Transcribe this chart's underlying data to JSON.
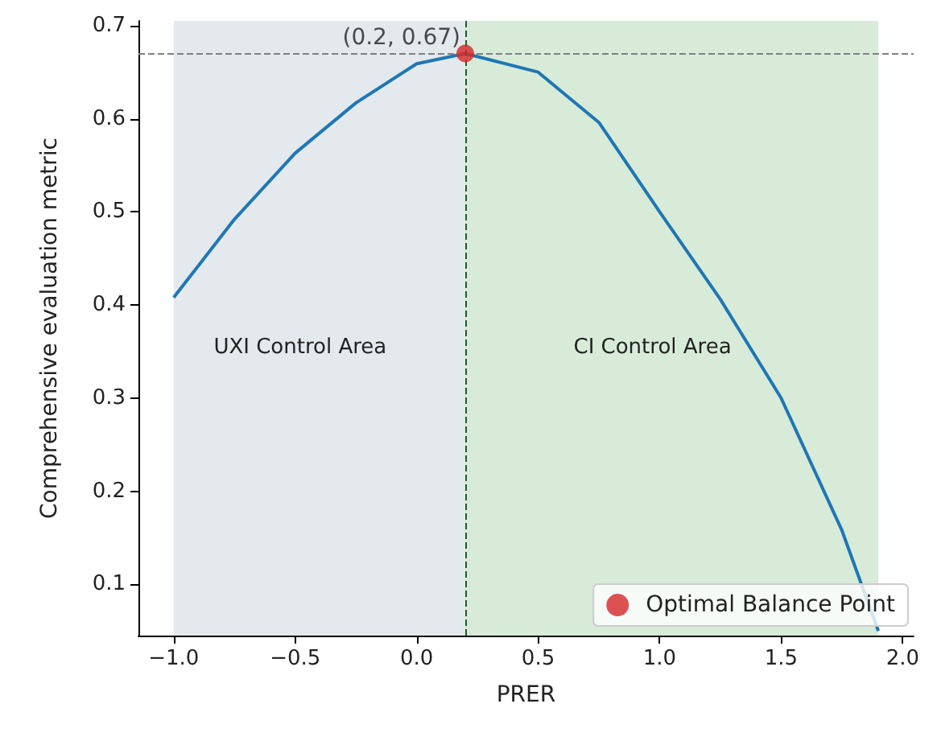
{
  "chart_data": {
    "type": "line",
    "xlabel": "PRER",
    "ylabel": "Comprehensive evaluation metric",
    "xlim": [
      -1.145,
      2.045
    ],
    "ylim": [
      0.045,
      0.705
    ],
    "xticks": [
      {
        "value": -1,
        "label": "−1.0"
      },
      {
        "value": -0.5,
        "label": "−0.5"
      },
      {
        "value": 0,
        "label": "0.0"
      },
      {
        "value": 0.5,
        "label": "0.5"
      },
      {
        "value": 1,
        "label": "1.0"
      },
      {
        "value": 1.5,
        "label": "1.5"
      },
      {
        "value": 2,
        "label": "2.0"
      }
    ],
    "yticks": [
      0.1,
      0.2,
      0.3,
      0.4,
      0.5,
      0.6,
      0.7
    ],
    "series": [
      {
        "type": "line",
        "color": "#1f77b4",
        "marker": "none",
        "x": [
          -1,
          -0.75,
          -0.5,
          -0.25,
          0,
          0.2,
          0.5,
          0.75,
          1,
          1.25,
          1.5,
          1.75,
          1.9
        ],
        "values": [
          0.408,
          0.492,
          0.563,
          0.617,
          0.659,
          0.67,
          0.65,
          0.596,
          0.5,
          0.406,
          0.3,
          0.158,
          0.05
        ]
      },
      {
        "type": "scatter",
        "name": "Optimal Balance Point",
        "color": "#d62728",
        "marker": "circle",
        "x": [
          0.2
        ],
        "values": [
          0.67
        ]
      }
    ],
    "bands": [
      {
        "axis": "x",
        "from": -1,
        "to": 0.2,
        "label": "UXI Control Area",
        "color": "#e3e9ec"
      },
      {
        "axis": "x",
        "from": 0.2,
        "to": 1.9,
        "label": "CI Control Area",
        "color": "#d8ebd8"
      }
    ],
    "ref_lines": [
      {
        "axis": "y",
        "value": 0.67,
        "color": "#808080",
        "line_style": "dashed"
      },
      {
        "axis": "x",
        "value": 0.2,
        "color": "#1e5a32",
        "line_style": "dashed"
      }
    ],
    "annotations": [
      {
        "text": "(0.2, 0.67)",
        "x": 0.2,
        "y": 0.67
      }
    ],
    "grid": false,
    "legend": "bottom right"
  }
}
